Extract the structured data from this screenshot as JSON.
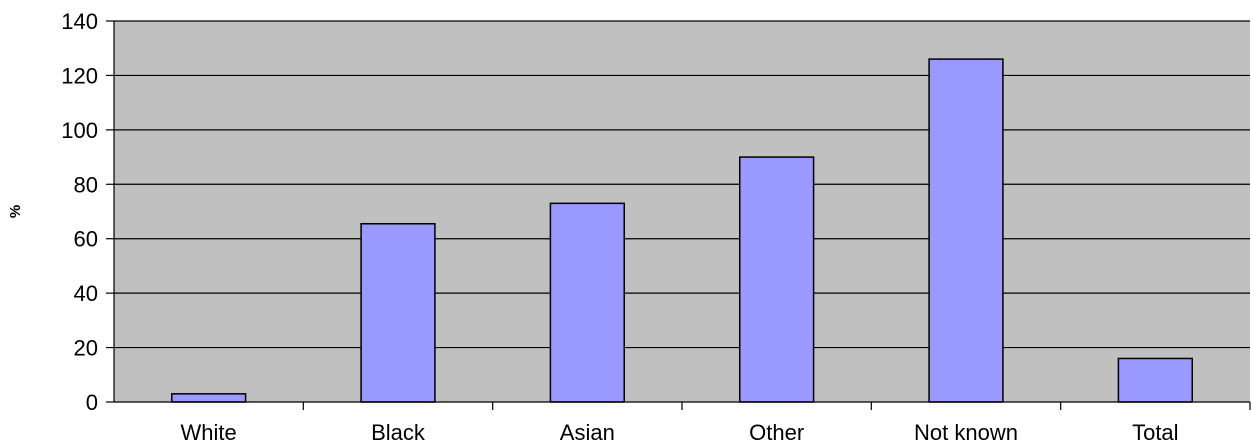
{
  "chart_data": {
    "type": "bar",
    "categories": [
      "White",
      "Black",
      "Asian",
      "Other",
      "Not known",
      "Total"
    ],
    "values": [
      3,
      65.5,
      73,
      90,
      126,
      16
    ],
    "xlabel": "",
    "ylabel": "%",
    "ylim": [
      0,
      140
    ],
    "yticks": [
      0,
      20,
      40,
      60,
      80,
      100,
      120,
      140
    ],
    "ytick_labels": [
      "0",
      "20",
      "40",
      "60",
      "80",
      "100",
      "120",
      "140"
    ],
    "grid": true,
    "legend": "none",
    "colors": {
      "plot_background": "#c0c0c0",
      "bar_fill": "#9999ff",
      "bar_stroke": "#000000",
      "gridline": "#000000",
      "axis": "#000000"
    }
  }
}
